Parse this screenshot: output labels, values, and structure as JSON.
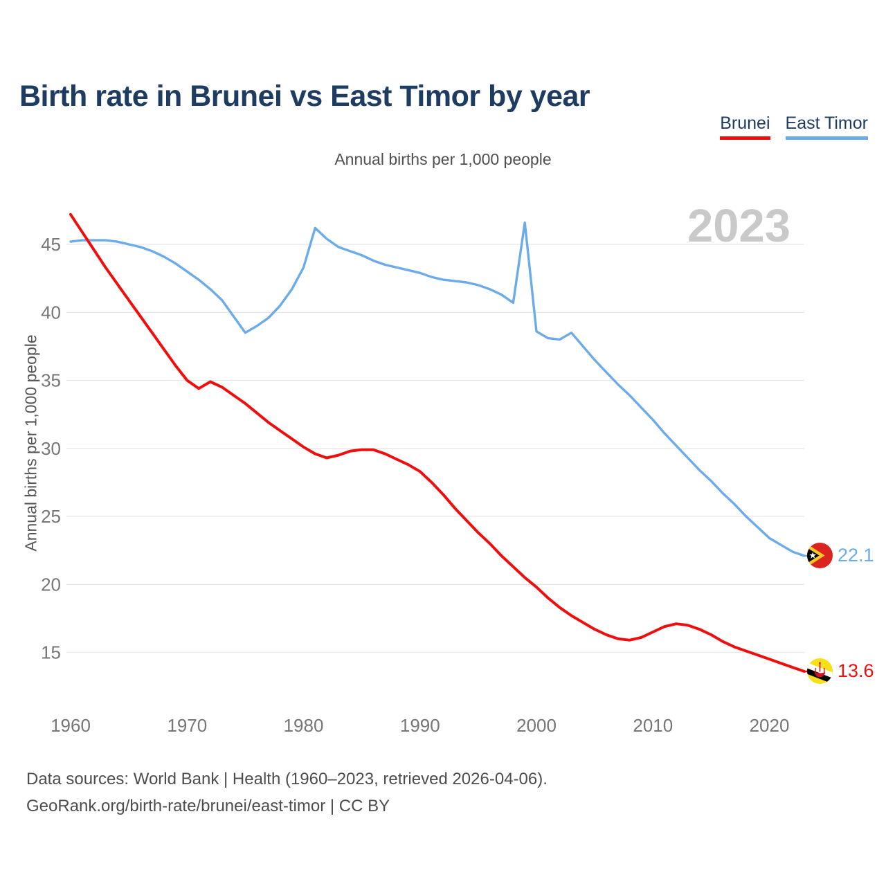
{
  "header": {
    "title": "Birth rate in Brunei vs East Timor by year"
  },
  "legend": {
    "items": [
      {
        "label": "Brunei",
        "color": "#f20d0d"
      },
      {
        "label": "East Timor",
        "color": "#6cabe9"
      }
    ]
  },
  "subtitle": "Annual births per 1,000 people",
  "watermark": "2023",
  "chart_data": {
    "type": "line",
    "title": "Birth rate in Brunei vs East Timor by year",
    "xlabel": "",
    "ylabel": "Annual births per 1,000 people",
    "ylim": [
      13,
      48
    ],
    "y_ticks": [
      15,
      20,
      25,
      30,
      35,
      40,
      45
    ],
    "x_ticks": [
      1960,
      1970,
      1980,
      1990,
      2000,
      2010,
      2020
    ],
    "grid": "horizontal",
    "legend_position": "top-right",
    "x": [
      1960,
      1961,
      1962,
      1963,
      1964,
      1965,
      1966,
      1967,
      1968,
      1969,
      1970,
      1971,
      1972,
      1973,
      1974,
      1975,
      1976,
      1977,
      1978,
      1979,
      1980,
      1981,
      1982,
      1983,
      1984,
      1985,
      1986,
      1987,
      1988,
      1989,
      1990,
      1991,
      1992,
      1993,
      1994,
      1995,
      1996,
      1997,
      1998,
      1999,
      2000,
      2001,
      2002,
      2003,
      2004,
      2005,
      2006,
      2007,
      2008,
      2009,
      2010,
      2011,
      2012,
      2013,
      2014,
      2015,
      2016,
      2017,
      2018,
      2019,
      2020,
      2021,
      2022,
      2023
    ],
    "series": [
      {
        "name": "Brunei",
        "color": "#f20d0d",
        "end_value": 13.6,
        "values": [
          47.2,
          45.9,
          44.6,
          43.3,
          42.1,
          40.9,
          39.7,
          38.5,
          37.3,
          36.1,
          35.0,
          34.4,
          34.9,
          34.5,
          33.9,
          33.3,
          32.6,
          31.9,
          31.3,
          30.7,
          30.1,
          29.6,
          29.3,
          29.5,
          29.8,
          29.9,
          29.9,
          29.6,
          29.2,
          28.8,
          28.3,
          27.5,
          26.6,
          25.6,
          24.7,
          23.8,
          23.0,
          22.1,
          21.3,
          20.5,
          19.8,
          19.0,
          18.3,
          17.7,
          17.2,
          16.7,
          16.3,
          16.0,
          15.9,
          16.1,
          16.5,
          16.9,
          17.1,
          17.0,
          16.7,
          16.3,
          15.8,
          15.4,
          15.1,
          14.8,
          14.5,
          14.2,
          13.9,
          13.6
        ]
      },
      {
        "name": "East Timor",
        "color": "#6cabe9",
        "end_value": 22.1,
        "values": [
          45.2,
          45.3,
          45.3,
          45.3,
          45.2,
          45.0,
          44.8,
          44.5,
          44.1,
          43.6,
          43.0,
          42.4,
          41.7,
          40.9,
          39.7,
          38.5,
          39.0,
          39.6,
          40.5,
          41.7,
          43.3,
          46.2,
          45.4,
          44.8,
          44.5,
          44.2,
          43.8,
          43.5,
          43.3,
          43.1,
          42.9,
          42.6,
          42.4,
          42.3,
          42.2,
          42.0,
          41.7,
          41.3,
          40.7,
          46.6,
          38.6,
          38.1,
          38.0,
          38.5,
          37.5,
          36.5,
          35.6,
          34.7,
          33.9,
          33.0,
          32.1,
          31.1,
          30.2,
          29.3,
          28.4,
          27.6,
          26.7,
          25.9,
          25.0,
          24.2,
          23.4,
          22.9,
          22.4,
          22.1
        ]
      }
    ]
  },
  "end_labels": [
    {
      "series": "East Timor",
      "value": "22.1",
      "color": "#6cabe9"
    },
    {
      "series": "Brunei",
      "value": "13.6",
      "color": "#f20d0d"
    }
  ],
  "footer": {
    "line1": "Data sources: World Bank | Health (1960–2023, retrieved 2026-04-06).",
    "line2": "GeoRank.org/birth-rate/brunei/east-timor | CC BY"
  }
}
